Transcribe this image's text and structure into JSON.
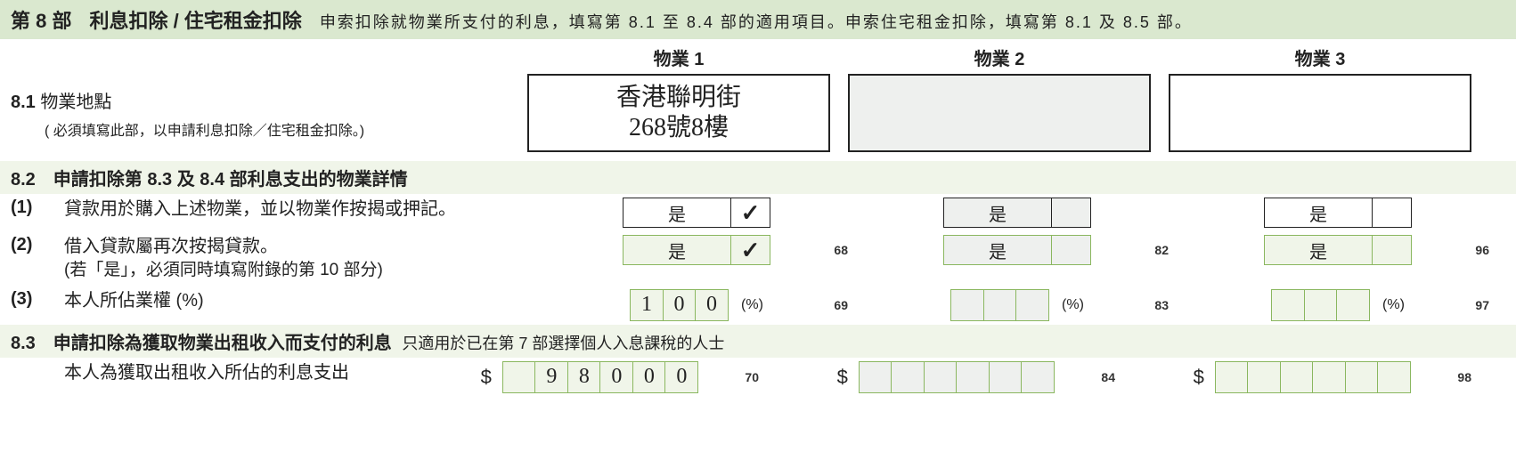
{
  "colors": {
    "header_bg": "#dae8cf",
    "subheader_bg": "#f0f5e9",
    "green_border": "#8ab75f",
    "shaded_bg": "#eef0ee",
    "text": "#222222"
  },
  "section_header": {
    "part_no": "第 8 部",
    "title": "利息扣除 / 住宅租金扣除",
    "subtitle": "申索扣除就物業所支付的利息，填寫第 8.1 至 8.4 部的適用項目。申索住宅租金扣除，填寫第 8.1 及 8.5 部。"
  },
  "col_headers": {
    "p1": "物業 1",
    "p2": "物業 2",
    "p3": "物業 3"
  },
  "row81": {
    "no": "8.1",
    "label": "物業地點",
    "hint": "( 必須填寫此部，以申請利息扣除／住宅租金扣除。)",
    "p1_line1": "香港聯明街",
    "p1_line2": "268號8樓",
    "p2": "",
    "p3": ""
  },
  "row82": {
    "header": "8.2　申請扣除第 8.3 及 8.4 部利息支出的物業詳情",
    "q1": {
      "num": "(1)",
      "text": "貸款用於購入上述物業，並以物業作按揭或押記。",
      "p1": {
        "label": "是",
        "tick": "✓"
      },
      "p2": {
        "label": "是",
        "tick": ""
      },
      "p3": {
        "label": "是",
        "tick": ""
      }
    },
    "q2": {
      "num": "(2)",
      "text": "借入貸款屬再次按揭貸款。",
      "sub": "(若「是」，必須同時填寫附錄的第 10 部分)",
      "p1": {
        "label": "是",
        "tick": "✓",
        "code": "68"
      },
      "p2": {
        "label": "是",
        "tick": "",
        "code": "82"
      },
      "p3": {
        "label": "是",
        "tick": "",
        "code": "96"
      }
    },
    "q3": {
      "num": "(3)",
      "text": "本人所佔業權 (%)",
      "p1": {
        "d": [
          "1",
          "0",
          "0"
        ],
        "pct": "(%)",
        "code": "69"
      },
      "p2": {
        "d": [
          "",
          "",
          ""
        ],
        "pct": "(%)",
        "code": "83"
      },
      "p3": {
        "d": [
          "",
          "",
          ""
        ],
        "pct": "(%)",
        "code": "97"
      }
    }
  },
  "row83": {
    "header": "8.3　申請扣除為獲取物業出租收入而支付的利息",
    "header_sub": "只適用於已在第 7 部選擇個人入息課稅的人士",
    "text": "本人為獲取出租收入所佔的利息支出",
    "dollar": "$",
    "p1": {
      "d": [
        "",
        "9",
        "8",
        "0",
        "0",
        "0"
      ],
      "code": "70"
    },
    "p2": {
      "d": [
        "",
        "",
        "",
        "",
        "",
        ""
      ],
      "code": "84"
    },
    "p3": {
      "d": [
        "",
        "",
        "",
        "",
        "",
        ""
      ],
      "code": "98"
    }
  }
}
